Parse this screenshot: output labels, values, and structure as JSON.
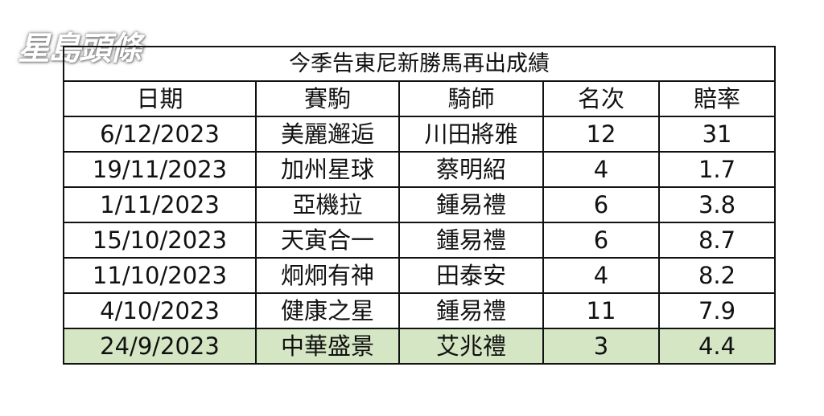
{
  "logo": "星島頭條",
  "table": {
    "title": "今季告東尼新勝馬再出成績",
    "headers": [
      "日期",
      "賽駒",
      "騎師",
      "名次",
      "賠率"
    ],
    "rows": [
      [
        "6/12/2023",
        "美麗邂逅",
        "川田將雅",
        "12",
        "31"
      ],
      [
        "19/11/2023",
        "加州星球",
        "蔡明紹",
        "4",
        "1.7"
      ],
      [
        "1/11/2023",
        "亞機拉",
        "鍾易禮",
        "6",
        "3.8"
      ],
      [
        "15/10/2023",
        "天寅合一",
        "鍾易禮",
        "6",
        "8.7"
      ],
      [
        "11/10/2023",
        "炯炯有神",
        "田泰安",
        "4",
        "8.2"
      ],
      [
        "4/10/2023",
        "健康之星",
        "鍾易禮",
        "11",
        "7.9"
      ],
      [
        "24/9/2023",
        "中華盛景",
        "艾兆禮",
        "3",
        "4.4"
      ]
    ],
    "highlight_color": "#d5e6c4"
  }
}
